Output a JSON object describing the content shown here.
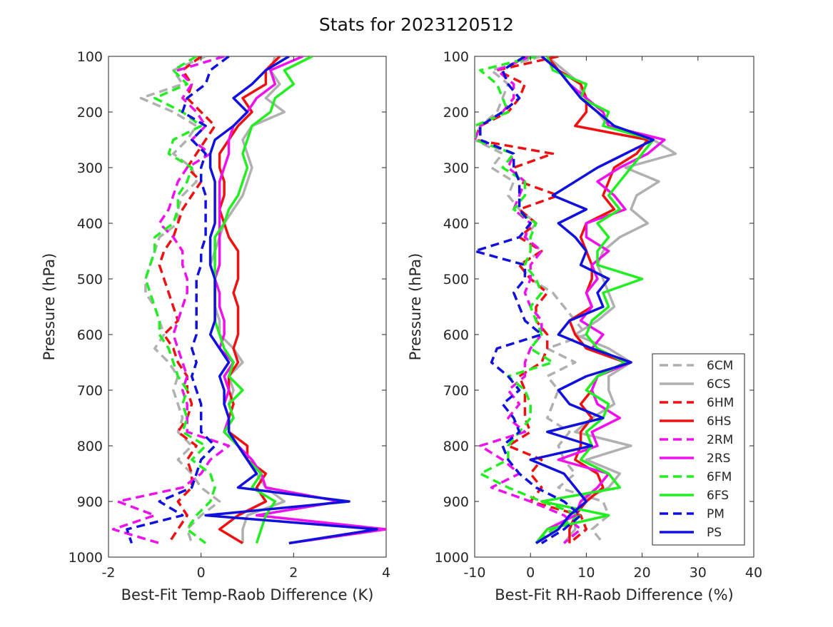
{
  "figure": {
    "title": "Stats for 2023120512"
  },
  "chart_data": [
    {
      "type": "line",
      "xlabel": "Best-Fit Temp-Raob Difference (K)",
      "ylabel": "Pressure (hPa)",
      "xlim": [
        -2,
        4
      ],
      "ylim": [
        1000,
        100
      ],
      "y_reversed": true,
      "xticks": [
        "-2",
        "0",
        "2",
        "4"
      ],
      "yticks": [
        "100",
        "200",
        "300",
        "400",
        "500",
        "600",
        "700",
        "800",
        "900",
        "1000"
      ],
      "pressure_levels": [
        100,
        125,
        150,
        175,
        200,
        225,
        250,
        275,
        300,
        325,
        350,
        375,
        400,
        425,
        450,
        475,
        500,
        525,
        550,
        575,
        600,
        625,
        650,
        675,
        700,
        725,
        750,
        775,
        800,
        825,
        850,
        875,
        900,
        925,
        950,
        975
      ],
      "series": [
        {
          "name": "6CM",
          "color": "#b0b0b0",
          "dash": true,
          "values": [
            0.1,
            -0.6,
            -0.4,
            -1.3,
            -0.6,
            -0.1,
            -0.3,
            -0.6,
            -0.2,
            -0.1,
            -0.4,
            -0.5,
            -0.5,
            -0.9,
            -1.0,
            -1.1,
            -1.2,
            -1.2,
            -1.0,
            -0.9,
            -0.8,
            -1.0,
            -0.7,
            -0.5,
            -0.6,
            -0.5,
            -0.4,
            -0.5,
            -0.2,
            -0.5,
            -0.2,
            0.0,
            0.4,
            0.0,
            -0.3,
            -0.2
          ]
        },
        {
          "name": "6CS",
          "color": "#b0b0b0",
          "dash": false,
          "values": [
            1.6,
            1.5,
            1.7,
            1.4,
            1.8,
            1.1,
            0.9,
            1.0,
            1.1,
            1.0,
            0.9,
            0.7,
            0.5,
            0.4,
            0.3,
            0.2,
            0.3,
            0.3,
            0.3,
            0.4,
            0.4,
            0.7,
            0.9,
            0.6,
            0.7,
            0.6,
            0.7,
            0.5,
            0.8,
            1.0,
            1.2,
            1.4,
            1.8,
            1.0,
            0.9,
            0.9
          ]
        },
        {
          "name": "6HM",
          "color": "#ee1111",
          "dash": true,
          "values": [
            0.0,
            -0.4,
            -0.2,
            -0.3,
            0.0,
            0.3,
            0.1,
            -0.1,
            -0.3,
            0.0,
            -0.2,
            -0.4,
            -0.5,
            -0.6,
            -0.8,
            -0.9,
            -0.8,
            -0.7,
            -0.6,
            -0.5,
            -0.8,
            -0.6,
            -0.5,
            -0.3,
            -0.3,
            -0.2,
            -0.3,
            -0.5,
            -0.1,
            -0.3,
            -0.2,
            -0.2,
            -0.5,
            -0.3,
            -0.5,
            -0.7
          ]
        },
        {
          "name": "6HS",
          "color": "#ee1111",
          "dash": false,
          "values": [
            1.7,
            1.4,
            1.4,
            0.9,
            1.1,
            0.8,
            0.6,
            0.4,
            0.4,
            0.5,
            0.5,
            0.4,
            0.5,
            0.6,
            0.8,
            0.8,
            0.8,
            0.7,
            0.8,
            0.8,
            0.8,
            0.7,
            0.8,
            0.6,
            0.6,
            0.7,
            0.6,
            0.6,
            1.0,
            1.0,
            1.4,
            1.2,
            1.4,
            0.8,
            0.4,
            0.9
          ]
        },
        {
          "name": "2RM",
          "color": "#ee11ee",
          "dash": true,
          "values": [
            0.5,
            -0.5,
            -0.2,
            -0.4,
            -0.1,
            0.1,
            -0.2,
            0.2,
            -0.3,
            -0.5,
            -0.6,
            -0.7,
            -0.9,
            -0.6,
            -0.4,
            -0.4,
            -0.3,
            -0.3,
            -0.4,
            -0.5,
            -0.6,
            -0.5,
            -0.4,
            -0.3,
            -0.4,
            -0.3,
            -0.3,
            -0.3,
            0.6,
            0.2,
            0.0,
            -0.4,
            -1.8,
            -1.0,
            -1.9,
            -0.9
          ]
        },
        {
          "name": "2RS",
          "color": "#ee11ee",
          "dash": false,
          "values": [
            2.2,
            1.5,
            1.6,
            1.2,
            1.0,
            0.7,
            0.6,
            0.6,
            0.5,
            0.4,
            0.4,
            0.4,
            0.4,
            0.4,
            0.4,
            0.4,
            0.3,
            0.4,
            0.4,
            0.5,
            0.5,
            0.4,
            0.7,
            0.5,
            0.6,
            0.5,
            0.6,
            0.5,
            0.8,
            1.1,
            1.3,
            1.4,
            3.0,
            1.2,
            4.0,
            1.9
          ]
        },
        {
          "name": "6FM",
          "color": "#22ee22",
          "dash": true,
          "values": [
            -0.1,
            -0.6,
            -0.3,
            -1.0,
            -0.4,
            0.0,
            -0.6,
            -0.7,
            -0.2,
            -0.3,
            -0.5,
            -0.5,
            -0.6,
            -1.0,
            -1.0,
            -1.1,
            -1.2,
            -1.1,
            -1.0,
            -0.9,
            -0.9,
            -0.7,
            -0.6,
            -0.5,
            -0.3,
            -0.4,
            -0.3,
            -0.4,
            0.1,
            -0.2,
            0.2,
            0.3,
            0.2,
            -0.1,
            -0.3,
            0.1
          ]
        },
        {
          "name": "6FS",
          "color": "#22ee22",
          "dash": false,
          "values": [
            2.4,
            1.8,
            2.0,
            1.6,
            1.5,
            1.1,
            1.0,
            0.9,
            1.0,
            0.9,
            0.8,
            0.6,
            0.5,
            0.3,
            0.3,
            0.3,
            0.3,
            0.3,
            0.3,
            0.3,
            0.4,
            0.5,
            0.7,
            0.6,
            0.9,
            0.6,
            0.7,
            0.5,
            0.8,
            1.0,
            1.3,
            1.1,
            1.6,
            1.4,
            1.3,
            1.2
          ]
        },
        {
          "name": "PM",
          "color": "#1111dd",
          "dash": true,
          "values": [
            0.6,
            0.2,
            0.1,
            -0.3,
            -0.4,
            0.1,
            -0.2,
            0.1,
            0.0,
            0.0,
            0.1,
            0.1,
            0.1,
            0.1,
            0.0,
            0.0,
            -0.1,
            -0.1,
            -0.1,
            -0.1,
            -0.1,
            -0.2,
            -0.1,
            -0.2,
            -0.1,
            0.0,
            0.0,
            0.0,
            0.3,
            0.0,
            -0.1,
            -0.2,
            -0.9,
            -0.4,
            -1.6,
            -1.5
          ]
        },
        {
          "name": "PS",
          "color": "#1111dd",
          "dash": false,
          "values": [
            1.9,
            1.4,
            1.1,
            0.7,
            1.0,
            0.7,
            0.3,
            0.2,
            0.2,
            0.3,
            0.3,
            0.3,
            0.3,
            0.2,
            0.2,
            0.2,
            0.3,
            0.3,
            0.3,
            0.3,
            0.2,
            0.4,
            0.6,
            0.4,
            0.5,
            0.5,
            0.6,
            0.6,
            0.8,
            1.0,
            1.2,
            0.8,
            3.2,
            0.1,
            3.8,
            1.9
          ]
        }
      ]
    },
    {
      "type": "line",
      "xlabel": "Best-Fit RH-Raob Difference (%)",
      "ylabel": "Pressure (hPa)",
      "xlim": [
        -10,
        40
      ],
      "ylim": [
        1000,
        100
      ],
      "y_reversed": true,
      "xticks": [
        "-10",
        "0",
        "10",
        "20",
        "30",
        "40"
      ],
      "yticks": [
        "100",
        "200",
        "300",
        "400",
        "500",
        "600",
        "700",
        "800",
        "900",
        "1000"
      ],
      "pressure_levels": [
        100,
        125,
        150,
        175,
        200,
        225,
        250,
        275,
        300,
        325,
        350,
        375,
        400,
        425,
        450,
        475,
        500,
        525,
        550,
        575,
        600,
        625,
        650,
        675,
        700,
        725,
        750,
        775,
        800,
        825,
        850,
        875,
        900,
        925,
        950,
        975
      ],
      "series": [
        {
          "name": "6CM",
          "color": "#b0b0b0",
          "dash": true,
          "values": [
            2.0,
            -7.0,
            -4.0,
            -5.0,
            -6.0,
            -9.0,
            -10.0,
            -5.0,
            -7.0,
            -3.0,
            -4.0,
            -2.0,
            1.0,
            -1.0,
            2.0,
            -2.0,
            0.0,
            4.0,
            6.0,
            8.0,
            10.0,
            3.0,
            8.0,
            3.0,
            5.0,
            4.0,
            3.0,
            7.0,
            5.0,
            6.0,
            8.0,
            5.0,
            13.0,
            14.0,
            11.0,
            13.0
          ]
        },
        {
          "name": "6CS",
          "color": "#b0b0b0",
          "dash": false,
          "values": [
            3.0,
            6.0,
            9.0,
            9.0,
            12.0,
            14.0,
            22.0,
            26.0,
            17.0,
            23.0,
            19.0,
            18.0,
            21.0,
            16.0,
            13.0,
            12.0,
            13.0,
            14.0,
            15.0,
            12.0,
            8.0,
            14.0,
            18.0,
            14.0,
            14.0,
            15.0,
            11.0,
            8.0,
            18.0,
            10.0,
            16.0,
            14.0,
            9.0,
            8.0,
            8.0,
            6.0
          ]
        },
        {
          "name": "6HM",
          "color": "#ee1111",
          "dash": true,
          "values": [
            5.0,
            -6.0,
            -1.0,
            -2.0,
            -4.0,
            -9.0,
            -10.0,
            4.0,
            -3.0,
            -2.0,
            5.0,
            -2.0,
            1.0,
            -2.0,
            2.0,
            -2.0,
            0.0,
            3.0,
            1.0,
            1.0,
            3.0,
            3.0,
            2.0,
            -2.0,
            -1.0,
            -1.0,
            -1.0,
            0.0,
            -4.0,
            2.0,
            0.0,
            2.0,
            0.0,
            9.0,
            10.0,
            7.0
          ]
        },
        {
          "name": "6HS",
          "color": "#ee1111",
          "dash": false,
          "values": [
            3.0,
            5.0,
            9.0,
            10.0,
            10.0,
            8.0,
            21.0,
            19.0,
            15.0,
            14.0,
            13.0,
            15.0,
            10.0,
            9.0,
            10.0,
            11.0,
            11.0,
            10.0,
            11.0,
            7.0,
            8.0,
            10.0,
            17.0,
            12.0,
            11.0,
            9.0,
            11.0,
            9.0,
            9.0,
            8.0,
            12.0,
            13.0,
            10.0,
            8.0,
            7.0,
            7.0
          ]
        },
        {
          "name": "2RM",
          "color": "#ee11ee",
          "dash": true,
          "values": [
            0.0,
            -6.0,
            -3.0,
            -3.0,
            -5.0,
            -9.0,
            -10.0,
            -3.0,
            -4.0,
            -1.0,
            -2.0,
            -3.0,
            0.0,
            -1.0,
            2.0,
            0.0,
            0.0,
            -1.0,
            0.0,
            2.0,
            2.0,
            0.0,
            -1.0,
            -1.0,
            -4.0,
            -2.0,
            -4.0,
            -1.0,
            -9.0,
            -5.0,
            -2.0,
            -7.0,
            0.0,
            6.0,
            9.0,
            6.0
          ]
        },
        {
          "name": "2RS",
          "color": "#ee11ee",
          "dash": false,
          "values": [
            2.0,
            5.0,
            7.0,
            10.0,
            13.0,
            14.0,
            24.0,
            21.0,
            16.0,
            12.0,
            15.0,
            17.0,
            10.0,
            10.0,
            14.0,
            11.0,
            12.0,
            10.0,
            11.0,
            9.0,
            13.0,
            11.0,
            18.0,
            12.0,
            11.0,
            12.0,
            16.0,
            11.0,
            12.0,
            5.0,
            14.0,
            12.0,
            9.0,
            8.0,
            3.0,
            1.0
          ]
        },
        {
          "name": "6FM",
          "color": "#22ee22",
          "dash": true,
          "values": [
            1.0,
            -9.0,
            -6.0,
            -5.0,
            -4.0,
            -10.0,
            -10.0,
            -3.0,
            -5.0,
            -1.0,
            -1.0,
            -3.0,
            1.0,
            0.0,
            0.0,
            -1.0,
            1.0,
            2.0,
            0.0,
            1.0,
            2.0,
            0.0,
            4.0,
            -4.0,
            -1.0,
            0.0,
            0.0,
            -2.0,
            -4.0,
            -4.0,
            -9.0,
            -4.0,
            2.0,
            9.0,
            4.0,
            1.0
          ]
        },
        {
          "name": "6FS",
          "color": "#22ee22",
          "dash": false,
          "values": [
            3.0,
            4.0,
            10.0,
            9.0,
            14.0,
            13.0,
            22.0,
            20.0,
            18.0,
            16.0,
            14.0,
            16.0,
            12.0,
            14.0,
            12.0,
            12.0,
            20.0,
            13.0,
            14.0,
            11.0,
            10.0,
            12.0,
            17.0,
            12.0,
            10.0,
            14.0,
            13.0,
            10.0,
            11.0,
            9.0,
            14.0,
            16.0,
            2.0,
            14.0,
            3.0,
            1.0
          ]
        },
        {
          "name": "PM",
          "color": "#1111dd",
          "dash": true,
          "values": [
            -1.0,
            -5.0,
            -4.0,
            -2.0,
            -5.0,
            -9.0,
            -9.0,
            -3.0,
            -3.0,
            -2.0,
            -2.0,
            -2.0,
            0.0,
            -2.0,
            -10.0,
            -1.0,
            -1.0,
            -3.0,
            -2.0,
            -1.0,
            2.0,
            -6.0,
            -7.0,
            -4.0,
            -2.0,
            -5.0,
            -3.0,
            -2.0,
            -5.0,
            -4.0,
            -2.0,
            1.0,
            6.0,
            9.0,
            6.0,
            2.0
          ]
        },
        {
          "name": "PS",
          "color": "#1111dd",
          "dash": false,
          "values": [
            2.0,
            5.0,
            7.0,
            9.0,
            12.0,
            15.0,
            22.0,
            17.0,
            12.0,
            8.0,
            4.0,
            10.0,
            5.0,
            8.0,
            10.0,
            9.0,
            14.0,
            12.0,
            13.0,
            7.0,
            5.0,
            11.0,
            18.0,
            10.0,
            5.0,
            7.0,
            13.0,
            3.0,
            11.0,
            0.0,
            6.0,
            8.0,
            10.0,
            7.0,
            5.0,
            1.0
          ]
        }
      ]
    }
  ]
}
